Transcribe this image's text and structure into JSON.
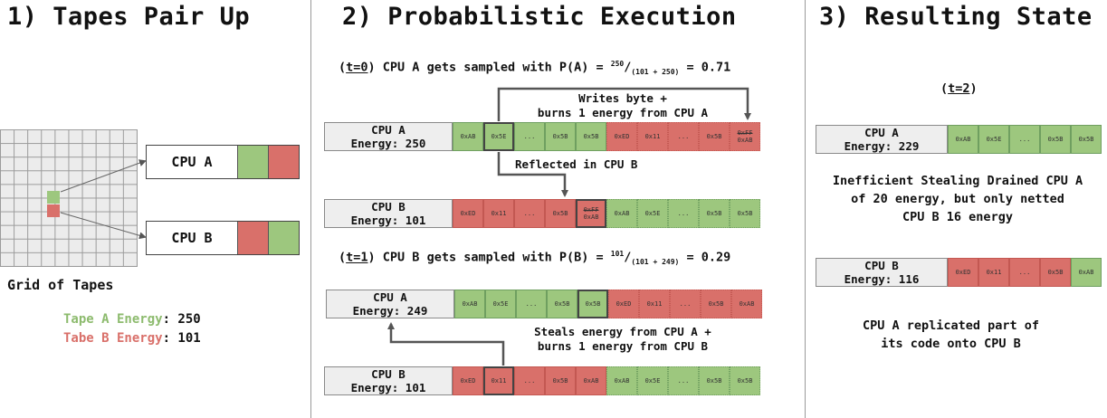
{
  "panel1": {
    "heading": "1)  Tapes Pair Up",
    "cpu_a": "CPU A",
    "cpu_b": "CPU B",
    "grid_label": "Grid of Tapes",
    "tape_a_label": "Tape A Energy",
    "tape_a_value": ": 250",
    "tape_b_label": "Tabe B Energy",
    "tape_b_value": ": 101"
  },
  "panel2": {
    "heading": "2)  Probabilistic Execution",
    "t0": {
      "step": "t=0",
      "text": " CPU A gets sampled with P(A) = ",
      "num": "250",
      "den": "(101 + 250)",
      "result": " = 0.71"
    },
    "writes_note_1": "Writes byte +",
    "writes_note_2": "burns 1 energy from CPU A",
    "reflected_note": "Reflected in CPU B",
    "tape1_a": {
      "name": "CPU A",
      "energy": "Energy: 250",
      "cells": [
        "0xAB",
        "0x5E",
        "...",
        "0x5B",
        "0x5B",
        "0xED",
        "0x11",
        "...",
        "0x5B",
        "0xFF|0xAB"
      ]
    },
    "tape1_b": {
      "name": "CPU B",
      "energy": "Energy: 101",
      "cells": [
        "0xED",
        "0x11",
        "...",
        "0x5B",
        "0xFF|0xAB",
        "0xAB",
        "0x5E",
        "...",
        "0x5B",
        "0x5B"
      ]
    },
    "t1": {
      "step": "t=1",
      "text": " CPU B gets sampled with P(B) = ",
      "num": "101",
      "den": "(101 + 249)",
      "result": " = 0.29"
    },
    "steals_note_1": "Steals energy from CPU A +",
    "steals_note_2": "burns 1 energy from CPU B",
    "tape2_a": {
      "name": "CPU A",
      "energy": "Energy: 249",
      "cells": [
        "0xAB",
        "0x5E",
        "...",
        "0x5B",
        "0x5B",
        "0xED",
        "0x11",
        "...",
        "0x5B",
        "0xAB"
      ]
    },
    "tape2_b": {
      "name": "CPU B",
      "energy": "Energy: 101",
      "cells": [
        "0xED",
        "0x11",
        "...",
        "0x5B",
        "0xAB",
        "0xAB",
        "0x5E",
        "...",
        "0x5B",
        "0x5B"
      ]
    }
  },
  "panel3": {
    "heading": "3)  Resulting State",
    "step": "t=2",
    "tape_a": {
      "name": "CPU A",
      "energy": "Energy: 229",
      "cells": [
        "0xAB",
        "0x5E",
        "...",
        "0x5B",
        "0x5B"
      ]
    },
    "note_1": "Inefficient Stealing Drained CPU A",
    "note_2": "of 20 energy, but only netted",
    "note_3": "CPU B 16 energy",
    "tape_b": {
      "name": "CPU B",
      "energy": "Energy: 116",
      "cells": [
        "0xED",
        "0x11",
        "...",
        "0x5B",
        "0xAB"
      ]
    },
    "note_4": "CPU A replicated part of",
    "note_5": "its code onto CPU B"
  },
  "colors": {
    "green": "#9dc77e",
    "red": "#d9706a",
    "tape_a_text": "#8dbb6e",
    "tape_b_text": "#d9706a"
  }
}
